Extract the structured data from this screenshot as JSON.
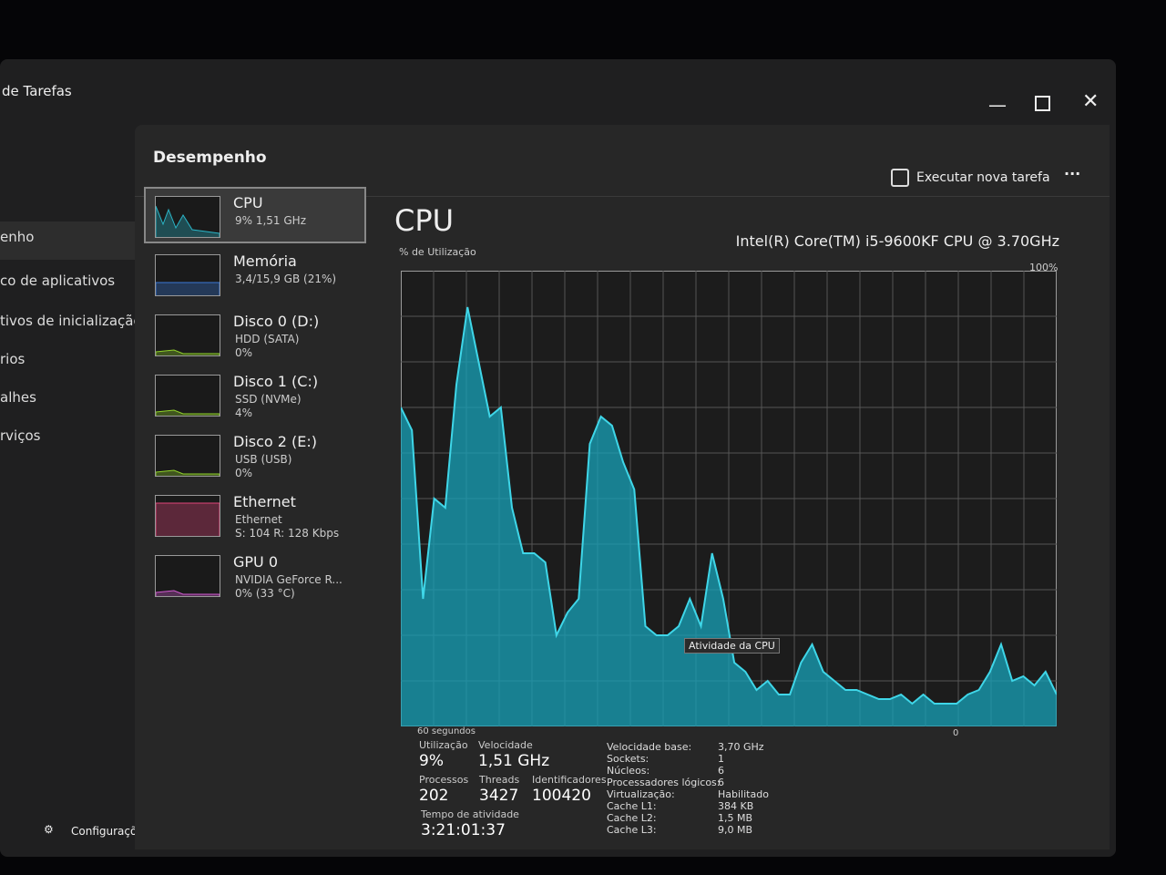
{
  "window": {
    "title": "de Tarefas"
  },
  "nav": {
    "items": [
      "enho",
      "co de aplicativos",
      "tivos de inicialização",
      "rios",
      "alhes",
      "rviços"
    ],
    "settings": "Configurações"
  },
  "header": {
    "title": "Desempenho",
    "run_task": "Executar nova tarefa"
  },
  "devices": [
    {
      "name": "CPU",
      "lines": [
        "9% 1,51 GHz"
      ]
    },
    {
      "name": "Memória",
      "lines": [
        "3,4/15,9 GB (21%)"
      ]
    },
    {
      "name": "Disco 0 (D:)",
      "lines": [
        "HDD (SATA)",
        "0%"
      ]
    },
    {
      "name": "Disco 1 (C:)",
      "lines": [
        "SSD (NVMe)",
        "4%"
      ]
    },
    {
      "name": "Disco 2 (E:)",
      "lines": [
        "USB (USB)",
        "0%"
      ]
    },
    {
      "name": "Ethernet",
      "lines": [
        "Ethernet",
        "S: 104 R: 128 Kbps"
      ]
    },
    {
      "name": "GPU 0",
      "lines": [
        "NVIDIA GeForce R...",
        "0% (33 °C)"
      ]
    }
  ],
  "cpu": {
    "title": "CPU",
    "model": "Intel(R) Core(TM) i5-9600KF CPU @ 3.70GHz",
    "tooltip": "Atividade da CPU"
  },
  "chart_data": {
    "type": "area",
    "y_label": "% de Utilização",
    "max_label": "100%",
    "x_label": "60 segundos",
    "min_label": "0",
    "ylim": [
      0,
      100
    ],
    "color": "#17a2b8",
    "values": [
      70,
      65,
      28,
      50,
      48,
      75,
      92,
      80,
      68,
      70,
      48,
      38,
      38,
      36,
      20,
      25,
      28,
      62,
      68,
      66,
      58,
      52,
      22,
      20,
      20,
      22,
      28,
      22,
      38,
      28,
      14,
      12,
      8,
      10,
      7,
      7,
      14,
      18,
      12,
      10,
      8,
      8,
      7,
      6,
      6,
      7,
      5,
      7,
      5,
      5,
      5,
      7,
      8,
      12,
      18,
      10,
      11,
      9,
      12,
      7
    ]
  },
  "stats": {
    "left": [
      {
        "label": "Utilização",
        "value": "9%"
      },
      {
        "label": "Velocidade",
        "value": "1,51 GHz"
      },
      {
        "label": "Processos",
        "value": "202"
      },
      {
        "label": "Threads",
        "value": "3427"
      },
      {
        "label": "Identificadores",
        "value": "100420"
      },
      {
        "label": "Tempo de atividade",
        "value": "3:21:01:37"
      }
    ],
    "right": [
      {
        "label": "Velocidade base:",
        "value": "3,70 GHz"
      },
      {
        "label": "Sockets:",
        "value": "1"
      },
      {
        "label": "Núcleos:",
        "value": "6"
      },
      {
        "label": "Processadores lógicos:",
        "value": "6"
      },
      {
        "label": "Virtualização:",
        "value": "Habilitado"
      },
      {
        "label": "Cache L1:",
        "value": "384 KB"
      },
      {
        "label": "Cache L2:",
        "value": "1,5 MB"
      },
      {
        "label": "Cache L3:",
        "value": "9,0 MB"
      }
    ]
  }
}
